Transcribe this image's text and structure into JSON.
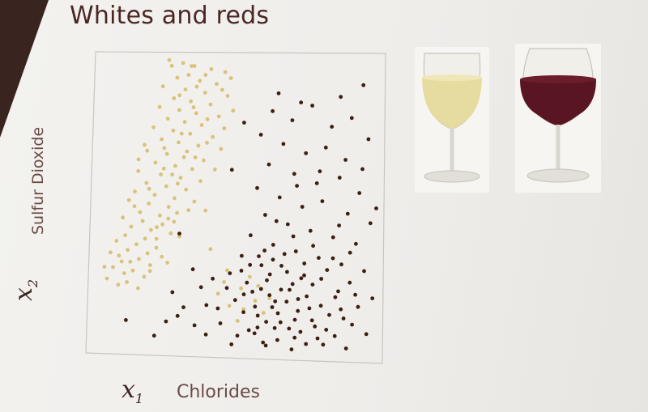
{
  "slide": {
    "title": "Whites and reds",
    "x_symbol": "x",
    "x_subscript": "1",
    "y_symbol": "x",
    "y_subscript": "2"
  },
  "colors": {
    "white_wine": "#d9c27a",
    "red_wine": "#3b1f12",
    "red_wine_glass": "#5a1522",
    "white_wine_glass": "#e6dca0",
    "title": "#4a2623"
  },
  "icons": [
    "white-wine-glass-icon",
    "red-wine-glass-icon"
  ],
  "chart_data": {
    "type": "scatter",
    "title": "Whites and reds",
    "xlabel": "Chlorides",
    "ylabel": "Sulfur Dioxide",
    "xlim": [
      0,
      100
    ],
    "ylim": [
      0,
      100
    ],
    "grid": false,
    "series": [
      {
        "color": "#d9c27a",
        "points": [
          [
            25,
            99
          ],
          [
            30,
            98
          ],
          [
            34,
            97
          ],
          [
            40,
            96
          ],
          [
            45,
            95
          ],
          [
            28,
            93
          ],
          [
            36,
            92
          ],
          [
            42,
            91
          ],
          [
            23,
            90
          ],
          [
            31,
            89
          ],
          [
            38,
            88
          ],
          [
            46,
            87
          ],
          [
            27,
            86
          ],
          [
            33,
            85
          ],
          [
            40,
            84
          ],
          [
            22,
            83
          ],
          [
            29,
            82
          ],
          [
            35,
            81
          ],
          [
            43,
            80
          ],
          [
            25,
            79
          ],
          [
            31,
            78
          ],
          [
            37,
            77
          ],
          [
            20,
            76
          ],
          [
            27,
            75
          ],
          [
            33,
            74
          ],
          [
            41,
            73
          ],
          [
            23,
            72
          ],
          [
            29,
            71
          ],
          [
            36,
            70
          ],
          [
            44,
            69
          ],
          [
            18,
            68
          ],
          [
            25,
            67
          ],
          [
            31,
            66
          ],
          [
            38,
            65
          ],
          [
            21,
            64
          ],
          [
            28,
            63
          ],
          [
            34,
            62
          ],
          [
            15,
            61
          ],
          [
            23,
            60
          ],
          [
            30,
            59
          ],
          [
            37,
            58
          ],
          [
            18,
            57
          ],
          [
            25,
            56
          ],
          [
            32,
            55
          ],
          [
            14,
            54
          ],
          [
            21,
            53
          ],
          [
            28,
            52
          ],
          [
            12,
            51
          ],
          [
            19,
            50
          ],
          [
            26,
            49
          ],
          [
            33,
            48
          ],
          [
            16,
            47
          ],
          [
            23,
            46
          ],
          [
            10,
            45
          ],
          [
            17,
            44
          ],
          [
            24,
            43
          ],
          [
            13,
            42
          ],
          [
            20,
            41
          ],
          [
            27,
            40
          ],
          [
            11,
            39
          ],
          [
            18,
            38
          ],
          [
            8,
            37
          ],
          [
            15,
            36
          ],
          [
            22,
            35
          ],
          [
            12,
            34
          ],
          [
            19,
            33
          ],
          [
            9,
            32
          ],
          [
            16,
            31
          ],
          [
            13,
            30
          ],
          [
            20,
            29
          ],
          [
            7,
            28
          ],
          [
            14,
            27
          ],
          [
            11,
            26
          ],
          [
            18,
            25
          ],
          [
            5,
            24
          ],
          [
            12,
            23
          ],
          [
            9,
            22
          ],
          [
            16,
            21
          ],
          [
            35,
            90
          ],
          [
            48,
            82
          ],
          [
            45,
            76
          ],
          [
            39,
            71
          ],
          [
            35,
            66
          ],
          [
            42,
            62
          ],
          [
            29,
            57
          ],
          [
            35,
            51
          ],
          [
            26,
            45
          ],
          [
            30,
            39
          ],
          [
            24,
            32
          ],
          [
            20,
            27
          ],
          [
            47,
            93
          ],
          [
            44,
            89
          ],
          [
            26,
            97
          ],
          [
            32,
            94
          ],
          [
            39,
            79
          ],
          [
            17,
            70
          ],
          [
            15,
            65
          ],
          [
            24,
            62
          ],
          [
            39,
            48
          ],
          [
            28,
            44
          ],
          [
            22,
            38
          ],
          [
            26,
            30
          ],
          [
            6,
            33
          ],
          [
            4,
            28
          ],
          [
            33,
            97
          ],
          [
            38,
            94
          ],
          [
            29,
            87
          ],
          [
            34,
            83
          ],
          [
            30,
            74
          ],
          [
            24,
            69
          ],
          [
            32,
            68
          ],
          [
            27,
            60
          ],
          [
            19,
            55
          ],
          [
            29,
            47
          ],
          [
            14,
            49
          ],
          [
            22,
            42
          ],
          [
            10,
            30
          ],
          [
            41,
            35
          ],
          [
            47,
            28
          ],
          [
            52,
            22
          ],
          [
            57,
            18
          ],
          [
            48,
            16
          ],
          [
            55,
            26
          ],
          [
            60,
            14
          ],
          [
            44,
            20
          ],
          [
            51,
            11
          ],
          [
            58,
            23
          ],
          [
            46,
            24
          ],
          [
            53,
            15
          ],
          [
            62,
            19
          ]
        ]
      },
      {
        "color": "#3b1f12",
        "points": [
          [
            62,
            82
          ],
          [
            69,
            79
          ],
          [
            76,
            84
          ],
          [
            83,
            77
          ],
          [
            90,
            80
          ],
          [
            96,
            73
          ],
          [
            58,
            74
          ],
          [
            66,
            71
          ],
          [
            74,
            68
          ],
          [
            81,
            70
          ],
          [
            88,
            66
          ],
          [
            94,
            63
          ],
          [
            61,
            64
          ],
          [
            70,
            61
          ],
          [
            78,
            58
          ],
          [
            86,
            60
          ],
          [
            93,
            55
          ],
          [
            57,
            56
          ],
          [
            65,
            53
          ],
          [
            73,
            50
          ],
          [
            80,
            52
          ],
          [
            89,
            48
          ],
          [
            97,
            45
          ],
          [
            60,
            47
          ],
          [
            68,
            44
          ],
          [
            76,
            42
          ],
          [
            84,
            40
          ],
          [
            92,
            38
          ],
          [
            55,
            40
          ],
          [
            63,
            37
          ],
          [
            71,
            35
          ],
          [
            79,
            33
          ],
          [
            87,
            31
          ],
          [
            95,
            29
          ],
          [
            58,
            33
          ],
          [
            66,
            30
          ],
          [
            74,
            27
          ],
          [
            82,
            29
          ],
          [
            90,
            25
          ],
          [
            52,
            28
          ],
          [
            61,
            25
          ],
          [
            69,
            22
          ],
          [
            77,
            24
          ],
          [
            85,
            20
          ],
          [
            93,
            17
          ],
          [
            56,
            21
          ],
          [
            64,
            18
          ],
          [
            72,
            15
          ],
          [
            80,
            17
          ],
          [
            88,
            13
          ],
          [
            96,
            8
          ],
          [
            53,
            14
          ],
          [
            61,
            11
          ],
          [
            69,
            9
          ],
          [
            77,
            12
          ],
          [
            85,
            7
          ],
          [
            45,
            10
          ],
          [
            57,
            7
          ],
          [
            65,
            5
          ],
          [
            73,
            8
          ],
          [
            81,
            4
          ],
          [
            40,
            6
          ],
          [
            49,
            3
          ],
          [
            60,
            4
          ],
          [
            70,
            2
          ],
          [
            89,
            3
          ],
          [
            50,
            18
          ],
          [
            59,
            30
          ],
          [
            68,
            28
          ],
          [
            75,
            20
          ],
          [
            63,
            16
          ],
          [
            54,
            24
          ],
          [
            66,
            22
          ],
          [
            71,
            12
          ],
          [
            58,
            13
          ],
          [
            62,
            27
          ],
          [
            74,
            31
          ],
          [
            67,
            34
          ],
          [
            80,
            26
          ],
          [
            86,
            22
          ],
          [
            60,
            35
          ],
          [
            52,
            33
          ],
          [
            78,
            10
          ],
          [
            83,
            14
          ],
          [
            91,
            11
          ],
          [
            47,
            22
          ],
          [
            55,
            8
          ],
          [
            64,
            9
          ],
          [
            72,
            19
          ],
          [
            79,
            6
          ],
          [
            44,
            15
          ],
          [
            51,
            6
          ],
          [
            57,
            16
          ],
          [
            65,
            14
          ],
          [
            70,
            24
          ],
          [
            76,
            16
          ],
          [
            62,
            20
          ],
          [
            68,
            18
          ],
          [
            73,
            26
          ],
          [
            59,
            22
          ],
          [
            55,
            30
          ],
          [
            63,
            32
          ],
          [
            48,
            27
          ],
          [
            53,
            20
          ],
          [
            58,
            9
          ],
          [
            66,
            11
          ],
          [
            71,
            6
          ],
          [
            61,
            3
          ],
          [
            75,
            4
          ],
          [
            82,
            9
          ],
          [
            87,
            16
          ],
          [
            92,
            21
          ],
          [
            84,
            33
          ],
          [
            90,
            35
          ],
          [
            77,
            37
          ],
          [
            70,
            40
          ],
          [
            64,
            45
          ],
          [
            71,
            57
          ],
          [
            79,
            62
          ],
          [
            86,
            44
          ],
          [
            35,
            28
          ],
          [
            38,
            22
          ],
          [
            32,
            15
          ],
          [
            28,
            20
          ],
          [
            42,
            25
          ],
          [
            36,
            9
          ],
          [
            30,
            12
          ],
          [
            22,
            5
          ],
          [
            26,
            10
          ],
          [
            40,
            16
          ],
          [
            12,
            10
          ],
          [
            30,
            40
          ],
          [
            48,
            62
          ],
          [
            52,
            78
          ],
          [
            64,
            88
          ],
          [
            72,
            85
          ],
          [
            86,
            87
          ],
          [
            94,
            91
          ],
          [
            99,
            50
          ],
          [
            98,
            20
          ]
        ]
      }
    ]
  }
}
